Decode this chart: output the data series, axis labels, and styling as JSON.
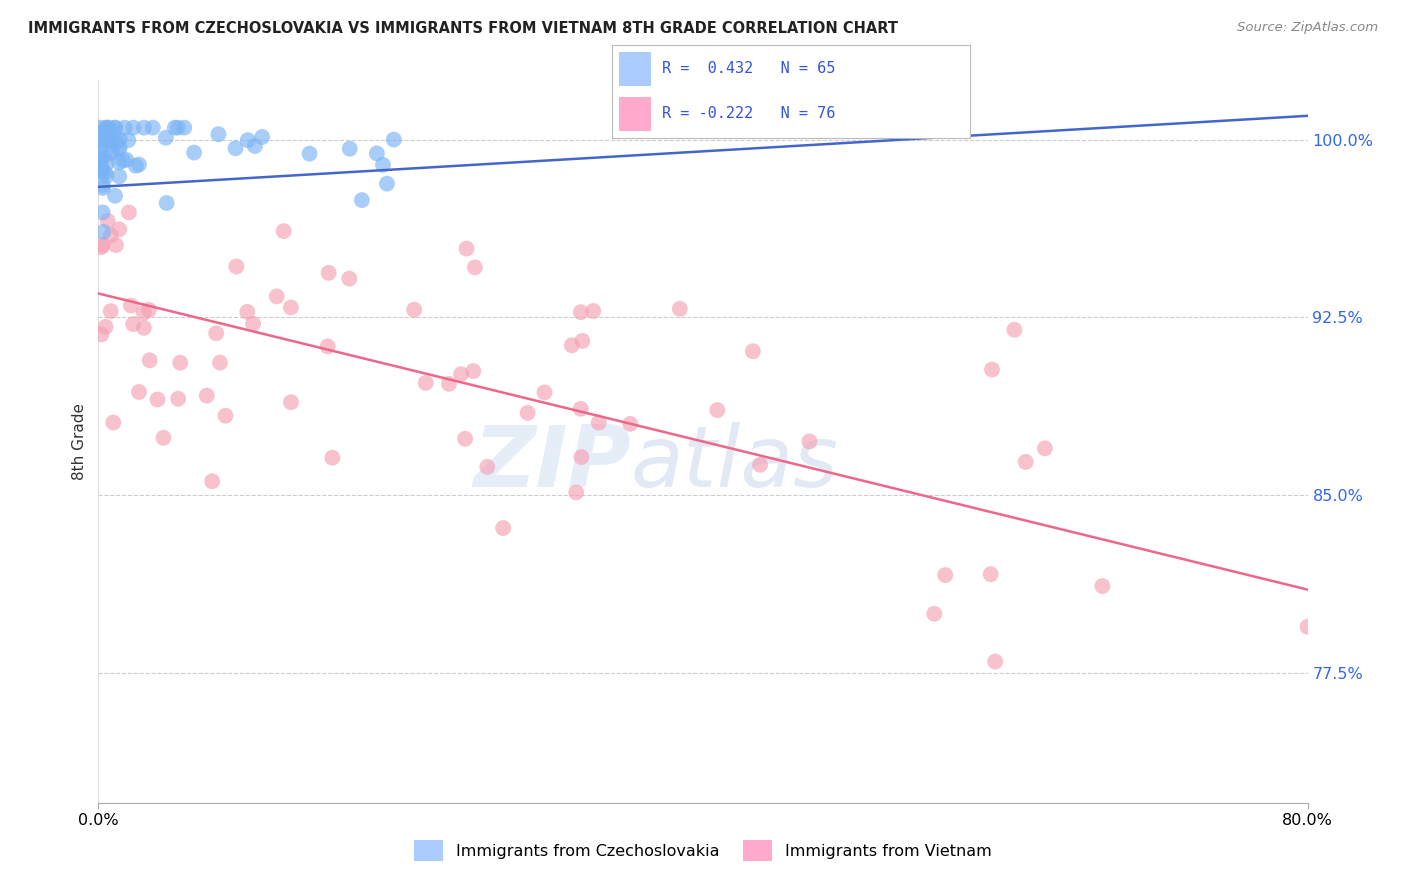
{
  "title": "IMMIGRANTS FROM CZECHOSLOVAKIA VS IMMIGRANTS FROM VIETNAM 8TH GRADE CORRELATION CHART",
  "source": "Source: ZipAtlas.com",
  "ylabel": "8th Grade",
  "legend_label1": "Immigrants from Czechoslovakia",
  "legend_label2": "Immigrants from Vietnam",
  "blue_color": "#7ab3f5",
  "pink_color": "#f5a0b5",
  "blue_line_color": "#4466cc",
  "pink_line_color": "#ee6688",
  "x_range": [
    0.0,
    80.0
  ],
  "y_range": [
    72.0,
    102.5
  ],
  "y_ticks": [
    77.5,
    85.0,
    92.5,
    100.0
  ],
  "y_tick_labels": [
    "77.5%",
    "85.0%",
    "92.5%",
    "100.0%"
  ],
  "blue_trend_x": [
    0.0,
    80.0
  ],
  "blue_trend_y": [
    98.0,
    101.0
  ],
  "pink_trend_x": [
    0.0,
    80.0
  ],
  "pink_trend_y": [
    93.5,
    81.0
  ],
  "legend_r1": "R =  0.432   N = 65",
  "legend_r2": "R = -0.222   N = 76"
}
